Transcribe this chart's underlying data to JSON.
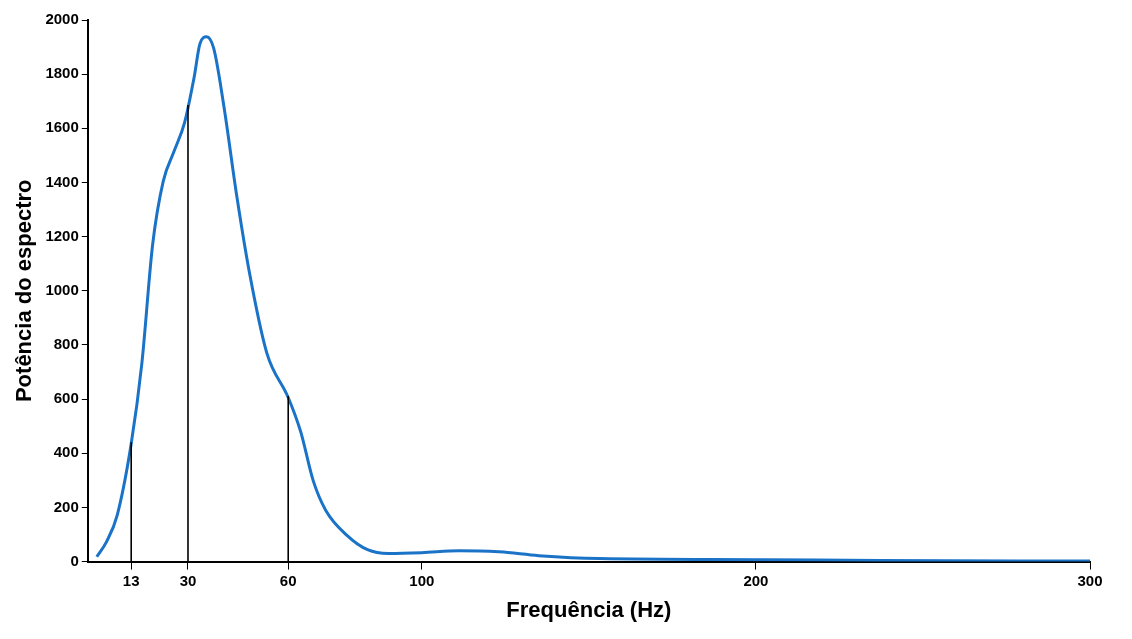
{
  "chart_data": {
    "type": "line",
    "xlabel": "Frequência (Hz)",
    "ylabel": "Potência do espectro",
    "x": [
      2.7,
      5.6,
      8.8,
      13,
      16.2,
      19.4,
      22.6,
      25.8,
      29,
      31.8,
      33.6,
      35.6,
      37.7,
      40.8,
      44.6,
      48.5,
      53.6,
      60,
      63.75,
      67.5,
      71.25,
      77.5,
      83.75,
      90,
      100,
      111,
      123,
      135,
      153,
      200,
      237,
      300
    ],
    "series": [
      {
        "color": "#1a73c7",
        "values": [
          18,
          73,
          171,
          435,
          733,
          1169,
          1405,
          1514,
          1622,
          1786,
          1913,
          1938,
          1895,
          1677,
          1350,
          1060,
          770,
          606,
          479,
          298,
          189,
          98,
          44,
          30,
          33,
          40,
          36,
          22,
          11,
          7,
          4,
          2
        ]
      }
    ],
    "xlim": [
      0,
      300
    ],
    "xticks": [
      13,
      30,
      60,
      100,
      200,
      300
    ],
    "ylim": [
      0,
      2000
    ],
    "yticks": [
      0,
      200,
      400,
      600,
      800,
      1000,
      1200,
      1400,
      1600,
      1800,
      2000
    ],
    "grid": false,
    "legend": false,
    "marker": "none",
    "line_style": "solid",
    "ref_lines": [
      {
        "axis": "x",
        "value": 13,
        "color": "#000000"
      },
      {
        "axis": "x",
        "value": 30,
        "color": "#000000"
      },
      {
        "axis": "x",
        "value": 60,
        "color": "#000000"
      }
    ]
  }
}
